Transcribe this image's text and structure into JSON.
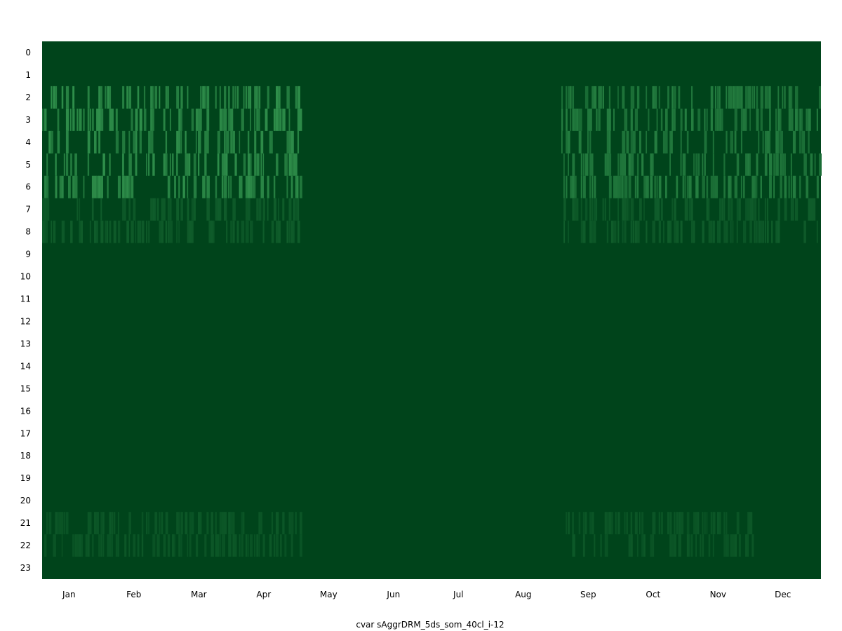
{
  "chart_data": {
    "type": "heatmap",
    "title": "",
    "xlabel": "cvar sAggrDRM_5ds_som_40cl_i-12",
    "ylabel": "",
    "x_tick_labels": [
      "Jan",
      "Feb",
      "Mar",
      "Apr",
      "May",
      "Jun",
      "Jul",
      "Aug",
      "Sep",
      "Oct",
      "Nov",
      "Dec"
    ],
    "y_tick_labels": [
      "0",
      "1",
      "2",
      "3",
      "4",
      "5",
      "6",
      "7",
      "8",
      "9",
      "10",
      "11",
      "12",
      "13",
      "14",
      "15",
      "16",
      "17",
      "18",
      "19",
      "20",
      "21",
      "22",
      "23"
    ],
    "rows": 24,
    "columns_per_month": 30,
    "value_range": [
      0,
      1
    ],
    "colorscale": [
      "#00441b",
      "#41ab5d"
    ],
    "grid": false,
    "legend": "none",
    "intensity_bands": [
      {
        "hours": [
          2,
          6
        ],
        "months": [
          "Jan",
          "Feb",
          "Mar",
          "Apr"
        ],
        "mean": 0.45
      },
      {
        "hours": [
          2,
          6
        ],
        "months": [
          "Sep",
          "Oct",
          "Nov",
          "Dec"
        ],
        "mean": 0.35
      },
      {
        "hours": [
          7,
          8
        ],
        "months": [
          "Jan",
          "Feb",
          "Mar",
          "Apr",
          "Sep",
          "Oct",
          "Nov",
          "Dec"
        ],
        "mean": 0.15
      },
      {
        "hours": [
          21,
          22
        ],
        "months": [
          "Jan",
          "Feb",
          "Mar",
          "Apr",
          "Sep",
          "Oct",
          "Nov"
        ],
        "mean": 0.12
      }
    ]
  }
}
